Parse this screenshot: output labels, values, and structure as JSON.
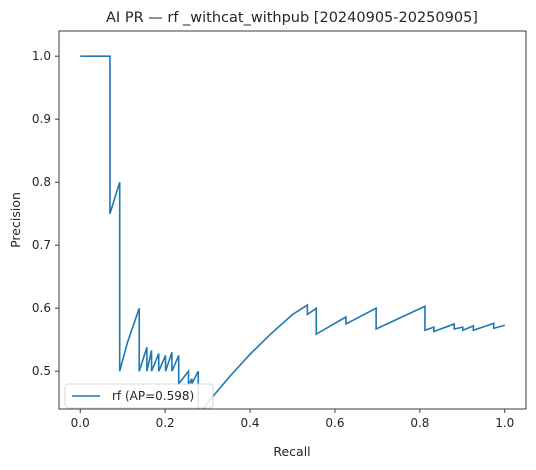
{
  "chart_data": {
    "type": "line",
    "title": "AI PR — rf _withcat_withpub [20240905-20250905]",
    "xlabel": "Recall",
    "ylabel": "Precision",
    "xlim": [
      -0.05,
      1.05
    ],
    "ylim": [
      0.44,
      1.04
    ],
    "xticks": [
      "0.0",
      "0.2",
      "0.4",
      "0.6",
      "0.8",
      "1.0"
    ],
    "xtick_values": [
      0.0,
      0.2,
      0.4,
      0.6,
      0.8,
      1.0
    ],
    "yticks": [
      "0.5",
      "0.6",
      "0.7",
      "0.8",
      "0.9",
      "1.0"
    ],
    "ytick_values": [
      0.5,
      0.6,
      0.7,
      0.8,
      0.9,
      1.0
    ],
    "grid": false,
    "legend_position": "lower-left",
    "series": [
      {
        "name": "rf (AP=0.598)",
        "color": "#1f77b4",
        "x": [
          0.0,
          0.07,
          0.07,
          0.093,
          0.093,
          0.111,
          0.139,
          0.139,
          0.157,
          0.157,
          0.168,
          0.168,
          0.185,
          0.185,
          0.201,
          0.201,
          0.216,
          0.216,
          0.232,
          0.232,
          0.255,
          0.255,
          0.263,
          0.263,
          0.278,
          0.278,
          0.3,
          0.35,
          0.4,
          0.45,
          0.5,
          0.535,
          0.535,
          0.556,
          0.556,
          0.626,
          0.626,
          0.697,
          0.697,
          0.812,
          0.812,
          0.833,
          0.833,
          0.881,
          0.881,
          0.901,
          0.901,
          0.926,
          0.926,
          0.974,
          0.974,
          1.0
        ],
        "y": [
          1.0,
          1.0,
          0.75,
          0.8,
          0.5,
          0.545,
          0.6,
          0.5,
          0.538,
          0.5,
          0.533,
          0.5,
          0.528,
          0.5,
          0.525,
          0.5,
          0.53,
          0.5,
          0.525,
          0.48,
          0.5,
          0.478,
          0.488,
          0.48,
          0.5,
          0.425,
          0.45,
          0.49,
          0.527,
          0.56,
          0.59,
          0.605,
          0.59,
          0.6,
          0.559,
          0.586,
          0.575,
          0.6,
          0.567,
          0.603,
          0.565,
          0.57,
          0.563,
          0.575,
          0.567,
          0.57,
          0.565,
          0.572,
          0.565,
          0.576,
          0.568,
          0.573
        ]
      }
    ]
  }
}
